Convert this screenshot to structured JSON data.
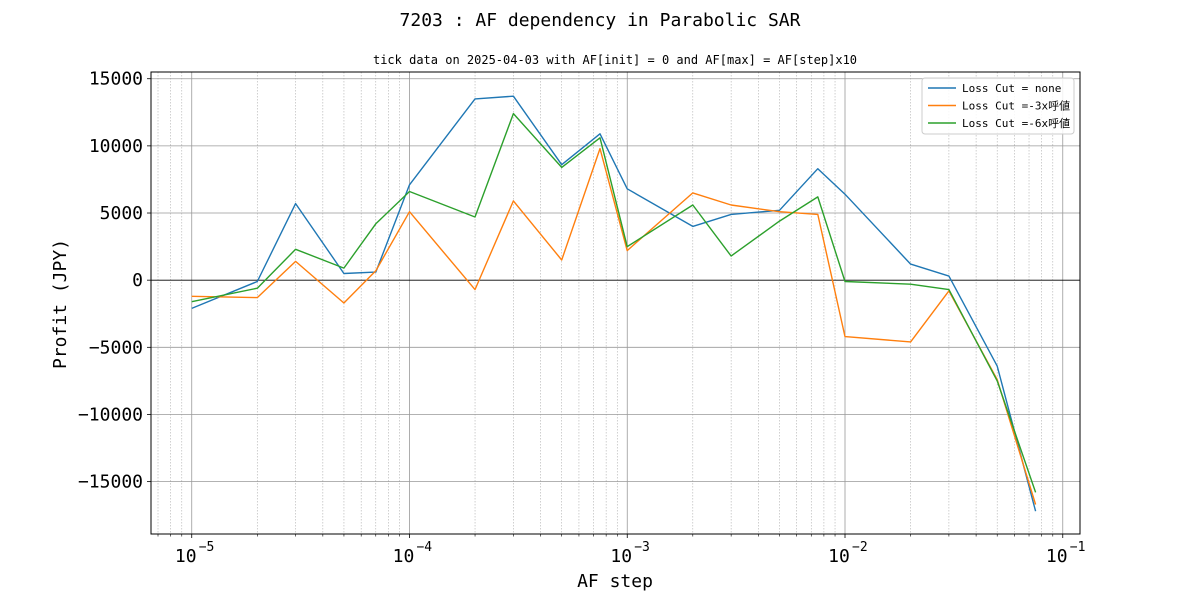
{
  "chart_data": {
    "type": "line",
    "title": "7203 : AF dependency in Parabolic SAR",
    "subtitle": "tick data on 2025-04-03 with AF[init] = 0 and AF[max] = AF[step]x10",
    "xlabel": "AF step",
    "ylabel": "Profit (JPY)",
    "xscale": "log",
    "xlim": [
      6.5e-06,
      0.12
    ],
    "ylim": [
      -18900,
      15500
    ],
    "x_tick_labels": [
      "10",
      "10",
      "10",
      "10",
      "10"
    ],
    "x_tick_exponents": [
      "−5",
      "−4",
      "−3",
      "−2",
      "−1"
    ],
    "y_ticks": [
      -15000,
      -10000,
      -5000,
      0,
      5000,
      10000,
      15000
    ],
    "y_tick_labels": [
      "−15000",
      "−10000",
      "−5000",
      "0",
      "5000",
      "10000",
      "15000"
    ],
    "grid": true,
    "legend_position": "top-right",
    "x": [
      1e-05,
      2e-05,
      3e-05,
      5e-05,
      7e-05,
      0.0001,
      0.0002,
      0.0003,
      0.0005,
      0.00075,
      0.001,
      0.002,
      0.003,
      0.005,
      0.0075,
      0.01,
      0.02,
      0.03,
      0.05,
      0.075
    ],
    "series": [
      {
        "name": "Loss Cut = none",
        "color": "#1f77b4",
        "values": [
          -2100,
          -100,
          5700,
          500,
          600,
          7100,
          13500,
          13700,
          8600,
          10900,
          6800,
          4000,
          4900,
          5200,
          8300,
          6400,
          1200,
          300,
          -6400,
          -17200
        ]
      },
      {
        "name": "Loss Cut =-3x呼値",
        "color": "#ff7f0e",
        "values": [
          -1200,
          -1300,
          1400,
          -1700,
          700,
          5100,
          -700,
          5900,
          1500,
          9800,
          2200,
          6500,
          5600,
          5100,
          4900,
          -4200,
          -4600,
          -800,
          -7400,
          -16700
        ]
      },
      {
        "name": "Loss Cut =-6x呼値",
        "color": "#2ca02c",
        "values": [
          -1600,
          -600,
          2300,
          900,
          4200,
          6600,
          4700,
          12400,
          8400,
          10600,
          2500,
          5600,
          1800,
          4400,
          6200,
          -100,
          -300,
          -700,
          -7500,
          -15800
        ]
      }
    ]
  }
}
